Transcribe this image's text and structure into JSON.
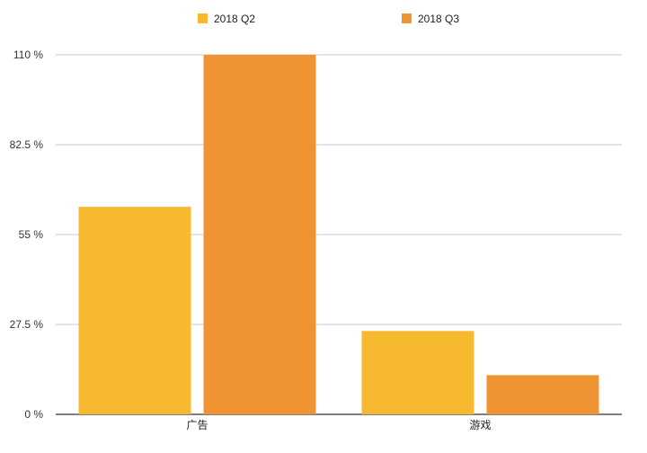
{
  "chart_data": {
    "type": "bar",
    "categories": [
      "广告",
      "游戏"
    ],
    "series": [
      {
        "name": "2018 Q2",
        "values": [
          63.5,
          25.5
        ],
        "color": "#F7B92F"
      },
      {
        "name": "2018 Q3",
        "values": [
          110,
          12
        ],
        "color": "#F09433"
      }
    ],
    "y_ticks": [
      "0 %",
      "27.5 %",
      "55 %",
      "82.5 %",
      "110 %"
    ],
    "ylim": [
      0,
      110
    ],
    "grid": true,
    "legend_position": "top-center"
  }
}
